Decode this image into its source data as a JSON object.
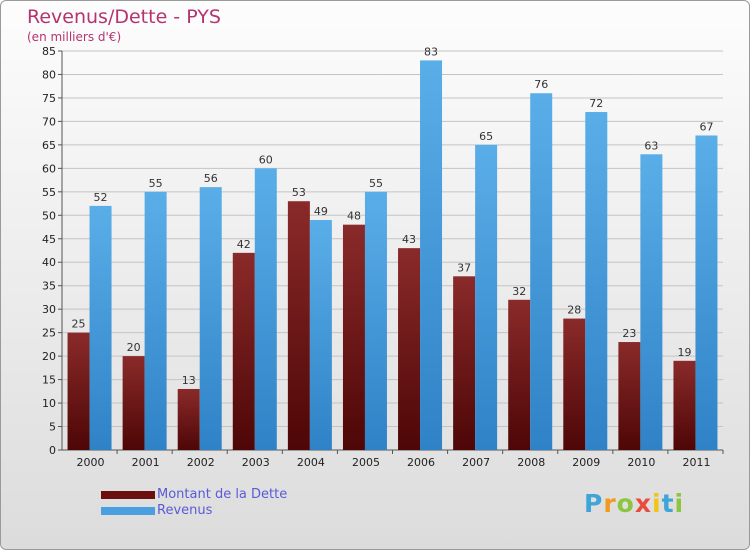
{
  "chart_data": {
    "type": "bar",
    "title": "Revenus/Dette - PYS",
    "subtitle": "(en milliers d'€)",
    "categories": [
      "2000",
      "2001",
      "2002",
      "2003",
      "2004",
      "2005",
      "2006",
      "2007",
      "2008",
      "2009",
      "2010",
      "2011"
    ],
    "series": [
      {
        "name": "Montant de la Dette",
        "values": [
          25,
          20,
          13,
          42,
          53,
          48,
          43,
          37,
          32,
          28,
          23,
          19
        ],
        "color": "#6b0f0f"
      },
      {
        "name": "Revenus",
        "values": [
          52,
          55,
          56,
          60,
          49,
          55,
          83,
          65,
          76,
          72,
          63,
          67
        ],
        "color": "#4a9fe0"
      }
    ],
    "ylim": [
      0,
      85
    ],
    "yticks": [
      0,
      5,
      10,
      15,
      20,
      25,
      30,
      35,
      40,
      45,
      50,
      55,
      60,
      65,
      70,
      75,
      80,
      85
    ],
    "grid": true,
    "legend_position": "bottom-left"
  },
  "brand": {
    "letters": [
      "P",
      "r",
      "o",
      "x",
      "i",
      "t",
      "i"
    ],
    "colors": [
      "#3fa4d8",
      "#f29a1e",
      "#8cc63f",
      "#e84c3d",
      "#f2c416",
      "#3fa4d8",
      "#8cc63f"
    ]
  }
}
